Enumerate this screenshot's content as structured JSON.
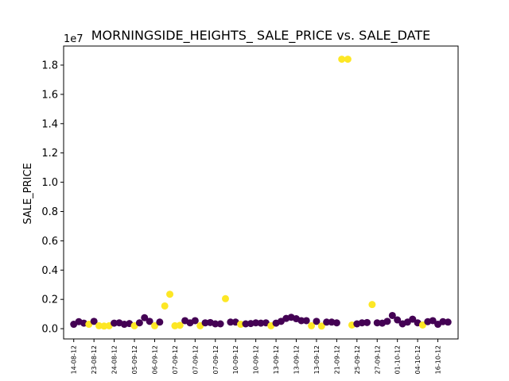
{
  "chart_data": {
    "type": "scatter",
    "title": "MORNINGSIDE_HEIGHTS_ SALE_PRICE vs. SALE_DATE",
    "xlabel": "",
    "ylabel": "SALE_PRICE",
    "y_offset_label": "1e7",
    "ylim": [
      -700000,
      19300000
    ],
    "y_ticks": [
      0.0,
      0.2,
      0.4,
      0.6,
      0.8,
      1.0,
      1.2,
      1.4,
      1.6,
      1.8
    ],
    "y_tick_labels": [
      "0.0",
      "0.2",
      "0.4",
      "0.6",
      "0.8",
      "1.0",
      "1.2",
      "1.4",
      "1.6",
      "1.8"
    ],
    "x_tick_labels": [
      "14-08-12",
      "23-08-12",
      "24-08-12",
      "05-09-12",
      "06-09-12",
      "07-09-12",
      "07-09-12",
      "07-09-12",
      "10-09-12",
      "10-09-12",
      "13-09-12",
      "13-09-12",
      "13-09-12",
      "21-09-12",
      "25-09-12",
      "27-09-12",
      "01-10-12",
      "04-10-12",
      "16-10-12"
    ],
    "x_range": [
      -0.5,
      19.0
    ],
    "colors": {
      "purple": "#440154",
      "yellow": "#fde725"
    },
    "grid": false,
    "points": [
      {
        "x": 0.0,
        "y": 300000,
        "c": "purple"
      },
      {
        "x": 0.25,
        "y": 480000,
        "c": "purple"
      },
      {
        "x": 0.5,
        "y": 380000,
        "c": "purple"
      },
      {
        "x": 0.75,
        "y": 300000,
        "c": "yellow"
      },
      {
        "x": 1.0,
        "y": 500000,
        "c": "purple"
      },
      {
        "x": 1.25,
        "y": 200000,
        "c": "yellow"
      },
      {
        "x": 1.5,
        "y": 180000,
        "c": "yellow"
      },
      {
        "x": 1.75,
        "y": 200000,
        "c": "yellow"
      },
      {
        "x": 2.0,
        "y": 380000,
        "c": "purple"
      },
      {
        "x": 2.25,
        "y": 400000,
        "c": "purple"
      },
      {
        "x": 2.5,
        "y": 300000,
        "c": "purple"
      },
      {
        "x": 2.75,
        "y": 350000,
        "c": "purple"
      },
      {
        "x": 3.0,
        "y": 200000,
        "c": "yellow"
      },
      {
        "x": 3.25,
        "y": 400000,
        "c": "purple"
      },
      {
        "x": 3.5,
        "y": 750000,
        "c": "purple"
      },
      {
        "x": 3.75,
        "y": 500000,
        "c": "purple"
      },
      {
        "x": 4.0,
        "y": 200000,
        "c": "yellow"
      },
      {
        "x": 4.25,
        "y": 450000,
        "c": "purple"
      },
      {
        "x": 4.5,
        "y": 1550000,
        "c": "yellow"
      },
      {
        "x": 4.75,
        "y": 2350000,
        "c": "yellow"
      },
      {
        "x": 5.0,
        "y": 200000,
        "c": "yellow"
      },
      {
        "x": 5.25,
        "y": 230000,
        "c": "yellow"
      },
      {
        "x": 5.5,
        "y": 550000,
        "c": "purple"
      },
      {
        "x": 5.75,
        "y": 400000,
        "c": "purple"
      },
      {
        "x": 6.0,
        "y": 550000,
        "c": "purple"
      },
      {
        "x": 6.25,
        "y": 200000,
        "c": "yellow"
      },
      {
        "x": 6.5,
        "y": 400000,
        "c": "purple"
      },
      {
        "x": 6.75,
        "y": 420000,
        "c": "purple"
      },
      {
        "x": 7.0,
        "y": 330000,
        "c": "purple"
      },
      {
        "x": 7.25,
        "y": 330000,
        "c": "purple"
      },
      {
        "x": 7.5,
        "y": 2050000,
        "c": "yellow"
      },
      {
        "x": 7.75,
        "y": 450000,
        "c": "purple"
      },
      {
        "x": 8.0,
        "y": 450000,
        "c": "purple"
      },
      {
        "x": 8.25,
        "y": 300000,
        "c": "yellow"
      },
      {
        "x": 8.5,
        "y": 330000,
        "c": "purple"
      },
      {
        "x": 8.75,
        "y": 350000,
        "c": "purple"
      },
      {
        "x": 9.0,
        "y": 400000,
        "c": "purple"
      },
      {
        "x": 9.25,
        "y": 380000,
        "c": "purple"
      },
      {
        "x": 9.5,
        "y": 400000,
        "c": "purple"
      },
      {
        "x": 9.75,
        "y": 200000,
        "c": "yellow"
      },
      {
        "x": 10.0,
        "y": 380000,
        "c": "purple"
      },
      {
        "x": 10.25,
        "y": 500000,
        "c": "purple"
      },
      {
        "x": 10.5,
        "y": 700000,
        "c": "purple"
      },
      {
        "x": 10.75,
        "y": 780000,
        "c": "purple"
      },
      {
        "x": 11.0,
        "y": 680000,
        "c": "purple"
      },
      {
        "x": 11.25,
        "y": 550000,
        "c": "purple"
      },
      {
        "x": 11.5,
        "y": 550000,
        "c": "purple"
      },
      {
        "x": 11.75,
        "y": 200000,
        "c": "yellow"
      },
      {
        "x": 12.0,
        "y": 500000,
        "c": "purple"
      },
      {
        "x": 12.25,
        "y": 180000,
        "c": "yellow"
      },
      {
        "x": 12.5,
        "y": 450000,
        "c": "purple"
      },
      {
        "x": 12.75,
        "y": 450000,
        "c": "purple"
      },
      {
        "x": 13.0,
        "y": 400000,
        "c": "purple"
      },
      {
        "x": 13.25,
        "y": 18400000,
        "c": "yellow"
      },
      {
        "x": 13.55,
        "y": 18400000,
        "c": "yellow"
      },
      {
        "x": 13.75,
        "y": 250000,
        "c": "yellow"
      },
      {
        "x": 14.0,
        "y": 330000,
        "c": "purple"
      },
      {
        "x": 14.25,
        "y": 400000,
        "c": "purple"
      },
      {
        "x": 14.5,
        "y": 420000,
        "c": "purple"
      },
      {
        "x": 14.75,
        "y": 1650000,
        "c": "yellow"
      },
      {
        "x": 15.0,
        "y": 400000,
        "c": "purple"
      },
      {
        "x": 15.25,
        "y": 380000,
        "c": "purple"
      },
      {
        "x": 15.5,
        "y": 500000,
        "c": "purple"
      },
      {
        "x": 15.75,
        "y": 900000,
        "c": "purple"
      },
      {
        "x": 16.0,
        "y": 600000,
        "c": "purple"
      },
      {
        "x": 16.25,
        "y": 330000,
        "c": "purple"
      },
      {
        "x": 16.5,
        "y": 450000,
        "c": "purple"
      },
      {
        "x": 16.75,
        "y": 650000,
        "c": "purple"
      },
      {
        "x": 17.0,
        "y": 400000,
        "c": "purple"
      },
      {
        "x": 17.25,
        "y": 250000,
        "c": "yellow"
      },
      {
        "x": 17.5,
        "y": 480000,
        "c": "purple"
      },
      {
        "x": 17.75,
        "y": 550000,
        "c": "purple"
      },
      {
        "x": 18.0,
        "y": 300000,
        "c": "purple"
      },
      {
        "x": 18.25,
        "y": 480000,
        "c": "purple"
      },
      {
        "x": 18.5,
        "y": 450000,
        "c": "purple"
      }
    ]
  }
}
